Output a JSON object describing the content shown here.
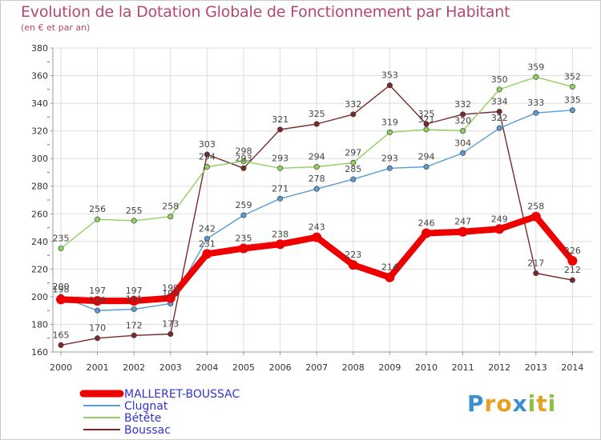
{
  "header": {
    "title": "Evolution de la Dotation Globale de Fonctionnement par Habitant",
    "subtitle": "(en € et par an)"
  },
  "logo": {
    "text": "Proxiti",
    "letters": [
      "P",
      "r",
      "o",
      "x",
      "i",
      "t",
      "i"
    ],
    "colors": [
      "#3a8fd0",
      "#e8a020",
      "#e8a020",
      "#3a8fd0",
      "#8cc040",
      "#e8a020",
      "#8cc040"
    ]
  },
  "chart_data": {
    "type": "line",
    "title": "Evolution de la Dotation Globale de Fonctionnement par Habitant",
    "subtitle": "(en € et par an)",
    "xlabel": "",
    "ylabel": "",
    "ylim": [
      160,
      380
    ],
    "ytick_step": 20,
    "grid": true,
    "legend": "bottom-left",
    "x": [
      "2000",
      "2001",
      "2002",
      "2003",
      "2004",
      "2005",
      "2006",
      "2007",
      "2008",
      "2009",
      "2010",
      "2011",
      "2012",
      "2013",
      "2014"
    ],
    "series": [
      {
        "name": "MALLERET-BOUSSAC",
        "color": "#ee0000",
        "legend_color": "#3333cc",
        "emphasis": true,
        "values": [
          198,
          197,
          197,
          199,
          231,
          235,
          238,
          243,
          223,
          214,
          246,
          247,
          249,
          258,
          226
        ],
        "labels": [
          "198",
          "197",
          "197",
          "199",
          "231",
          "235",
          "238",
          "243",
          "223",
          "214",
          "246",
          "247",
          "249",
          "258",
          "226"
        ]
      },
      {
        "name": "Clugnat",
        "color": "#5b9bd0",
        "legend_color": "#3333cc",
        "emphasis": false,
        "values": [
          200,
          190,
          191,
          195,
          242,
          259,
          271,
          278,
          285,
          293,
          294,
          304,
          322,
          333,
          335
        ],
        "labels": [
          "200",
          "190",
          "191",
          "195",
          "242",
          "259",
          "271",
          "278",
          "285",
          "293",
          "294",
          "304",
          "322",
          "333",
          "335"
        ]
      },
      {
        "name": "Bétête",
        "color": "#90d060",
        "legend_color": "#3333cc",
        "emphasis": false,
        "values": [
          235,
          256,
          255,
          258,
          294,
          298,
          293,
          294,
          297,
          319,
          321,
          320,
          350,
          359,
          352
        ],
        "labels": [
          "235",
          "256",
          "255",
          "258",
          "294",
          "298",
          "293",
          "294",
          "297",
          "319",
          "321",
          "320",
          "350",
          "359",
          "352"
        ]
      },
      {
        "name": "Boussac",
        "color": "#7a2a2a",
        "legend_color": "#3333cc",
        "emphasis": false,
        "values": [
          165,
          170,
          172,
          173,
          303,
          293,
          321,
          325,
          332,
          353,
          325,
          332,
          334,
          217,
          212
        ],
        "labels": [
          "165",
          "170",
          "172",
          "173",
          "303",
          "293",
          "321",
          "325",
          "332",
          "353",
          "325",
          "332",
          "334",
          "217",
          "212"
        ]
      }
    ]
  }
}
